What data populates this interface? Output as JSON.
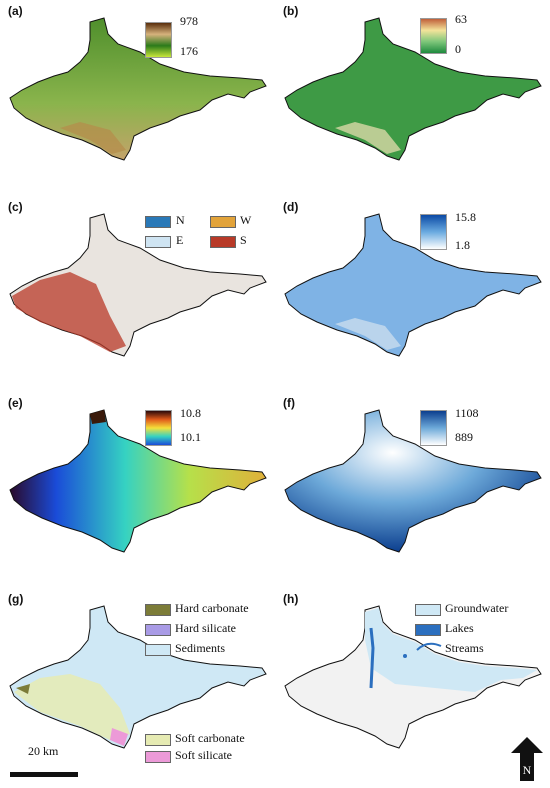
{
  "panels": [
    {
      "label": "(a)",
      "colorbar": {
        "max": "978",
        "min": "176",
        "colors": [
          "#5a2e0c",
          "#d6b27c",
          "#2b7a1a",
          "#c8e63c"
        ]
      },
      "fill": "#6ea33f"
    },
    {
      "label": "(b)",
      "colorbar": {
        "max": "63",
        "min": "0",
        "colors": [
          "#c0603a",
          "#f3e39a",
          "#7dc67a",
          "#1e8a3e"
        ]
      },
      "fill": "#3e9a45"
    },
    {
      "label": "(c)",
      "legend": [
        {
          "text": "N",
          "color": "#2a79b8"
        },
        {
          "text": "W",
          "color": "#e2a33a"
        },
        {
          "text": "E",
          "color": "#cfe4f2"
        },
        {
          "text": "S",
          "color": "#b83a28"
        }
      ],
      "fill": "#e9e4df"
    },
    {
      "label": "(d)",
      "colorbar": {
        "max": "15.8",
        "min": "1.8",
        "colors": [
          "#0b4aa5",
          "#6aaae0",
          "#ffffff"
        ]
      },
      "fill": "#7fb3e5"
    },
    {
      "label": "(e)",
      "colorbar": {
        "max": "10.8",
        "min": "10.1",
        "colors": [
          "#2a0a0a",
          "#e05a1a",
          "#f5e03a",
          "#35d2c2",
          "#1a4bd8"
        ]
      },
      "fill": "#3cc0c8"
    },
    {
      "label": "(f)",
      "colorbar": {
        "max": "1108",
        "min": "889",
        "colors": [
          "#0b3e8e",
          "#6da9d9",
          "#ffffff"
        ]
      },
      "fill": "#3a82c6"
    },
    {
      "label": "(g)",
      "legend": [
        {
          "text": "Hard carbonate",
          "color": "#7c7c38"
        },
        {
          "text": "Hard silicate",
          "color": "#a99be6"
        },
        {
          "text": "Sediments",
          "color": "#cfe8f5"
        },
        {
          "text": "Soft carbonate",
          "color": "#e6ebb3"
        },
        {
          "text": "Soft silicate",
          "color": "#ec9ad8"
        }
      ],
      "fill": "#cfe8f5"
    },
    {
      "label": "(h)",
      "legend": [
        {
          "text": "Groundwater",
          "color": "#cfe8f5"
        },
        {
          "text": "Lakes",
          "color": "#2b6fbf"
        },
        {
          "text": "Streams",
          "color": "#2b6fbf"
        }
      ],
      "fill": "#f2f2f2"
    }
  ],
  "scale_bar": {
    "label": "20 km"
  },
  "north_arrow": {
    "label": "N",
    "icon": "north-arrow-icon"
  }
}
